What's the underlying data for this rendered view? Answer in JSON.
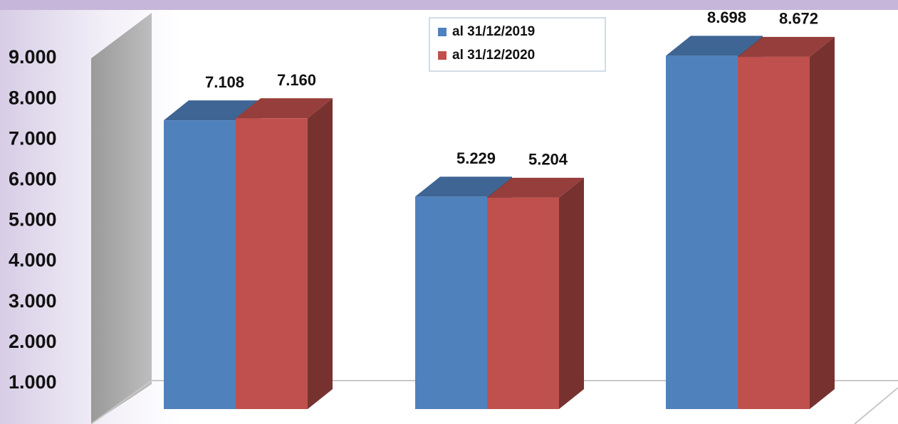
{
  "chart_data": {
    "type": "bar3d",
    "categories": [
      null,
      null,
      null
    ],
    "series": [
      {
        "name": "al 31/12/2019",
        "color": "#4f81bd",
        "values": [
          7108,
          5229,
          8698
        ],
        "value_labels": [
          "7.108",
          "5.229",
          "8.698"
        ]
      },
      {
        "name": "al 31/12/2020",
        "color": "#c0504d",
        "values": [
          7160,
          5204,
          8672
        ],
        "value_labels": [
          "7.160",
          "5.204",
          "8.672"
        ]
      }
    ],
    "ylim": [
      0,
      10000
    ],
    "yticks": [
      {
        "value": 1000,
        "label": "1.000"
      },
      {
        "value": 2000,
        "label": "2.000"
      },
      {
        "value": 3000,
        "label": "3.000"
      },
      {
        "value": 4000,
        "label": "4.000"
      },
      {
        "value": 5000,
        "label": "5.000"
      },
      {
        "value": 6000,
        "label": "6.000"
      },
      {
        "value": 7000,
        "label": "7.000"
      },
      {
        "value": 8000,
        "label": "8.000"
      },
      {
        "value": 9000,
        "label": "9.000"
      }
    ],
    "legend": "top"
  }
}
